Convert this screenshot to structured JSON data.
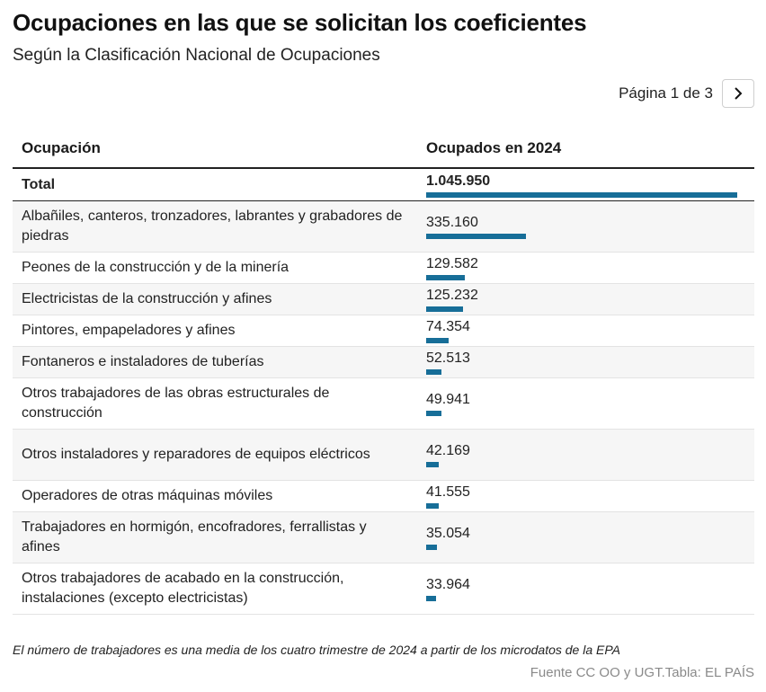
{
  "title": "Ocupaciones en las que se solicitan los coeficientes",
  "subtitle": "Según la Clasificación Nacional de Ocupaciones",
  "pagination": {
    "label": "Página 1 de 3",
    "next_icon": "chevron-right-icon"
  },
  "columns": [
    "Ocupación",
    "Ocupados en 2024"
  ],
  "total": {
    "label": "Total",
    "value_text": "1.045.950",
    "value": 1045950
  },
  "footer": {
    "note": "El número de trabajadores es una media de los cuatro trimestre de 2024 a partir de los microdatos de la EPA",
    "source": "Fuente CC OO y UGT.Tabla: EL PAÍS"
  },
  "colors": {
    "bar": "#176e98",
    "shaded_row": "#f6f6f6"
  },
  "chart_data": {
    "type": "table",
    "title": "Ocupaciones en las que se solicitan los coeficientes",
    "subtitle": "Según la Clasificación Nacional de Ocupaciones",
    "max": 1045950,
    "rows": [
      {
        "label": "Albañiles, canteros, tronzadores, labrantes y grabadores de piedras",
        "value_text": "335.160",
        "value": 335160
      },
      {
        "label": "Peones de la construcción y de la minería",
        "value_text": "129.582",
        "value": 129582
      },
      {
        "label": "Electricistas de la construcción y afines",
        "value_text": "125.232",
        "value": 125232
      },
      {
        "label": "Pintores, empapeladores y afines",
        "value_text": "74.354",
        "value": 74354
      },
      {
        "label": "Fontaneros e instaladores de tuberías",
        "value_text": "52.513",
        "value": 52513
      },
      {
        "label": "Otros trabajadores de las obras estructurales de construcción",
        "value_text": "49.941",
        "value": 49941
      },
      {
        "label": "Otros instaladores y reparadores de equipos eléctricos",
        "value_text": "42.169",
        "value": 42169
      },
      {
        "label": "Operadores de otras máquinas móviles",
        "value_text": "41.555",
        "value": 41555
      },
      {
        "label": "Trabajadores en hormigón, encofradores, ferrallistas y afines",
        "value_text": "35.054",
        "value": 35054
      },
      {
        "label": "Otros trabajadores de acabado en la construcción, instalaciones (excepto electricistas)",
        "value_text": "33.964",
        "value": 33964
      }
    ]
  }
}
